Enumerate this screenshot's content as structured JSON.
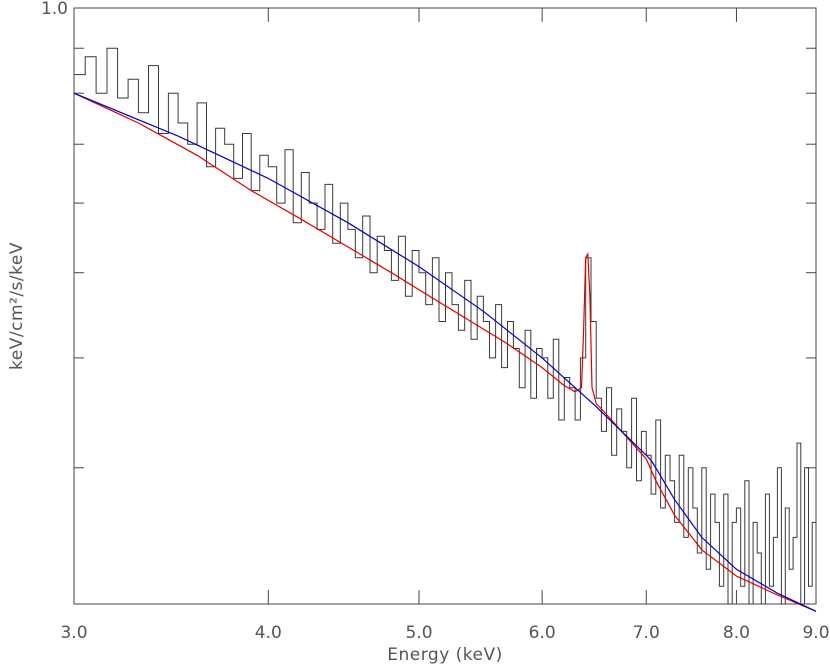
{
  "chart_data": {
    "type": "line",
    "title": "",
    "xlabel": "Energy (keV)",
    "ylabel": "keV/cm²/s/keV",
    "x_scale": "log",
    "y_scale": "log",
    "xlim": [
      3.0,
      9.0
    ],
    "ylim": [
      0.21,
      1.0
    ],
    "x_ticks": [
      {
        "value": 3.0,
        "label": "3.0"
      },
      {
        "value": 4.0,
        "label": "4.0"
      },
      {
        "value": 5.0,
        "label": "5.0"
      },
      {
        "value": 6.0,
        "label": "6.0"
      },
      {
        "value": 7.0,
        "label": "7.0"
      },
      {
        "value": 8.0,
        "label": "8.0"
      },
      {
        "value": 9.0,
        "label": "9.0"
      }
    ],
    "y_ticks": [
      {
        "value": 1.0,
        "label": "1.0"
      },
      {
        "value": 0.9,
        "label": ""
      },
      {
        "value": 0.8,
        "label": ""
      },
      {
        "value": 0.7,
        "label": ""
      },
      {
        "value": 0.6,
        "label": ""
      },
      {
        "value": 0.5,
        "label": ""
      },
      {
        "value": 0.4,
        "label": ""
      },
      {
        "value": 0.3,
        "label": ""
      }
    ],
    "grid": false,
    "colors": {
      "data": "#3a3a3a",
      "model_total": "#e00000",
      "continuum": "#0000cc"
    },
    "series": [
      {
        "id": "observed",
        "style": "steps",
        "x": [
          3.0,
          3.05,
          3.1,
          3.15,
          3.2,
          3.25,
          3.3,
          3.35,
          3.4,
          3.45,
          3.5,
          3.55,
          3.6,
          3.65,
          3.7,
          3.75,
          3.8,
          3.85,
          3.9,
          3.95,
          4.0,
          4.05,
          4.1,
          4.15,
          4.2,
          4.25,
          4.3,
          4.35,
          4.4,
          4.45,
          4.5,
          4.55,
          4.6,
          4.65,
          4.7,
          4.75,
          4.8,
          4.85,
          4.9,
          4.95,
          5.0,
          5.05,
          5.1,
          5.15,
          5.2,
          5.25,
          5.3,
          5.35,
          5.4,
          5.45,
          5.5,
          5.55,
          5.6,
          5.65,
          5.7,
          5.75,
          5.8,
          5.85,
          5.9,
          5.95,
          6.0,
          6.05,
          6.1,
          6.15,
          6.2,
          6.25,
          6.3,
          6.35,
          6.4,
          6.45,
          6.5,
          6.55,
          6.6,
          6.65,
          6.7,
          6.75,
          6.8,
          6.85,
          6.9,
          6.95,
          7.0,
          7.05,
          7.1,
          7.15,
          7.2,
          7.25,
          7.3,
          7.35,
          7.4,
          7.45,
          7.5,
          7.55,
          7.6,
          7.65,
          7.7,
          7.75,
          7.8,
          7.85,
          7.9,
          7.95,
          8.0,
          8.05,
          8.1,
          8.15,
          8.2,
          8.25,
          8.3,
          8.35,
          8.4,
          8.45,
          8.5,
          8.55,
          8.6,
          8.65,
          8.7,
          8.75,
          8.8,
          8.85,
          8.9,
          8.95
        ],
        "y": [
          0.84,
          0.88,
          0.8,
          0.9,
          0.79,
          0.83,
          0.76,
          0.86,
          0.72,
          0.8,
          0.74,
          0.7,
          0.78,
          0.66,
          0.73,
          0.7,
          0.64,
          0.72,
          0.62,
          0.68,
          0.66,
          0.6,
          0.69,
          0.57,
          0.65,
          0.6,
          0.56,
          0.63,
          0.54,
          0.6,
          0.56,
          0.52,
          0.58,
          0.5,
          0.55,
          0.53,
          0.49,
          0.55,
          0.47,
          0.53,
          0.5,
          0.46,
          0.52,
          0.44,
          0.5,
          0.46,
          0.43,
          0.49,
          0.42,
          0.47,
          0.44,
          0.4,
          0.46,
          0.39,
          0.44,
          0.41,
          0.37,
          0.43,
          0.36,
          0.41,
          0.4,
          0.36,
          0.42,
          0.34,
          0.38,
          0.37,
          0.34,
          0.4,
          0.52,
          0.44,
          0.36,
          0.33,
          0.37,
          0.31,
          0.35,
          0.33,
          0.3,
          0.36,
          0.29,
          0.33,
          0.31,
          0.28,
          0.34,
          0.27,
          0.31,
          0.29,
          0.26,
          0.31,
          0.25,
          0.3,
          0.27,
          0.24,
          0.3,
          0.23,
          0.28,
          0.26,
          0.22,
          0.28,
          0.21,
          0.26,
          0.27,
          0.22,
          0.29,
          0.21,
          0.26,
          0.24,
          0.21,
          0.28,
          0.22,
          0.25,
          0.3,
          0.21,
          0.27,
          0.23,
          0.25,
          0.32,
          0.21,
          0.3,
          0.22,
          0.26
        ]
      },
      {
        "id": "model-total",
        "style": "line",
        "x": [
          3.0,
          3.3,
          3.6,
          3.9,
          4.2,
          4.5,
          4.8,
          5.1,
          5.4,
          5.7,
          6.0,
          6.2,
          6.3,
          6.36,
          6.38,
          6.4,
          6.42,
          6.44,
          6.46,
          6.5,
          6.6,
          6.8,
          7.0,
          7.1,
          7.3,
          7.6,
          8.0,
          8.5,
          9.0
        ],
        "y": [
          0.8,
          0.74,
          0.68,
          0.62,
          0.575,
          0.535,
          0.5,
          0.468,
          0.44,
          0.415,
          0.39,
          0.372,
          0.366,
          0.37,
          0.43,
          0.52,
          0.525,
          0.47,
          0.37,
          0.355,
          0.345,
          0.325,
          0.307,
          0.29,
          0.265,
          0.242,
          0.226,
          0.215,
          0.206
        ]
      },
      {
        "id": "continuum",
        "style": "line",
        "x": [
          3.0,
          3.5,
          4.0,
          4.5,
          5.0,
          5.5,
          6.0,
          6.5,
          7.0,
          7.05,
          7.1,
          7.3,
          7.6,
          8.0,
          8.5,
          9.0
        ],
        "y": [
          0.8,
          0.715,
          0.64,
          0.57,
          0.508,
          0.452,
          0.4,
          0.352,
          0.31,
          0.306,
          0.3,
          0.276,
          0.25,
          0.23,
          0.216,
          0.206
        ]
      }
    ]
  }
}
